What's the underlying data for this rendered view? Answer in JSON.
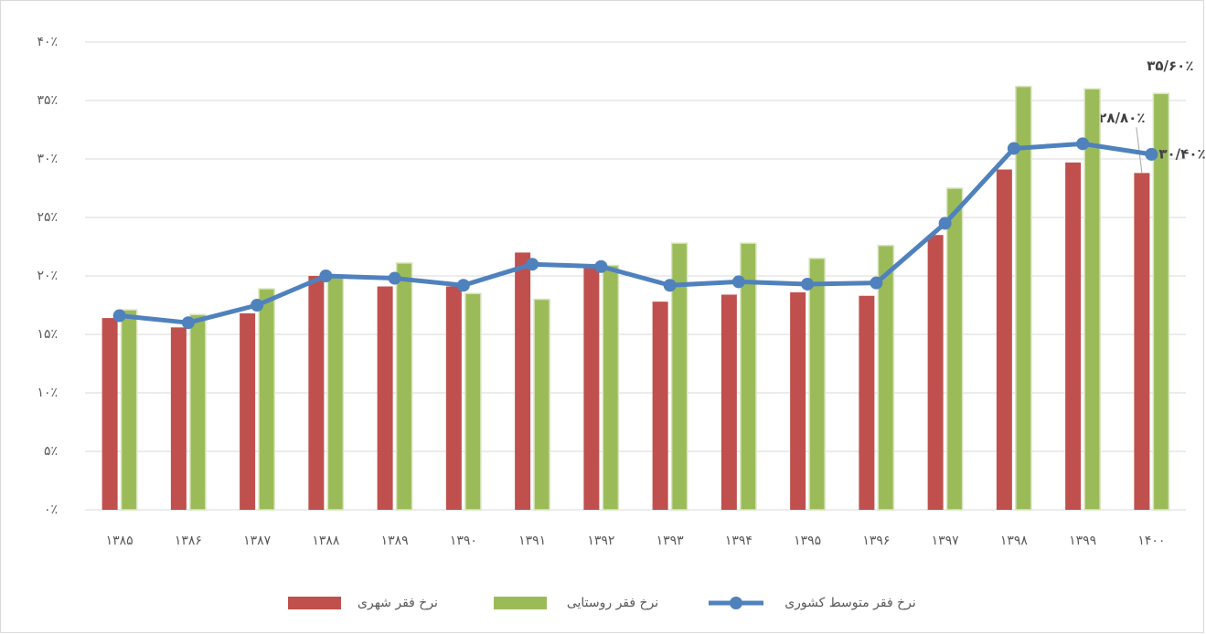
{
  "chart_data": {
    "type": "bar",
    "categories": [
      "۱۳۸۵",
      "۱۳۸۶",
      "۱۳۸۷",
      "۱۳۸۸",
      "۱۳۸۹",
      "۱۳۹۰",
      "۱۳۹۱",
      "۱۳۹۲",
      "۱۳۹۳",
      "۱۳۹۴",
      "۱۳۹۵",
      "۱۳۹۶",
      "۱۳۹۷",
      "۱۳۹۸",
      "۱۳۹۹",
      "۱۴۰۰"
    ],
    "series": [
      {
        "name": "نرخ فقر شهری",
        "type": "bar",
        "color": "#c0504d",
        "values": [
          16.4,
          15.6,
          16.8,
          20.0,
          19.1,
          19.1,
          22.0,
          20.7,
          17.8,
          18.4,
          18.6,
          18.3,
          23.5,
          29.1,
          29.7,
          28.8
        ],
        "value_labels": [
          null,
          null,
          null,
          null,
          null,
          null,
          null,
          null,
          null,
          null,
          null,
          null,
          null,
          null,
          null,
          "۲۸/۸۰٪"
        ]
      },
      {
        "name": "نرخ فقر روستایی",
        "type": "bar",
        "color": "#9bbb59",
        "values": [
          17.1,
          16.7,
          18.9,
          20.0,
          21.1,
          18.5,
          18.0,
          20.9,
          22.8,
          22.8,
          21.5,
          22.6,
          27.5,
          36.2,
          36.0,
          35.6
        ],
        "value_labels": [
          null,
          null,
          null,
          null,
          null,
          null,
          null,
          null,
          null,
          null,
          null,
          null,
          null,
          null,
          null,
          "۳۵/۶۰٪"
        ]
      },
      {
        "name": "نرخ فقر متوسط کشوری",
        "type": "line",
        "color": "#4f81bd",
        "values": [
          16.6,
          16.0,
          17.5,
          20.0,
          19.8,
          19.2,
          21.0,
          20.8,
          19.2,
          19.5,
          19.3,
          19.4,
          24.5,
          30.9,
          31.3,
          30.4
        ],
        "value_labels": [
          null,
          null,
          null,
          null,
          null,
          null,
          null,
          null,
          null,
          null,
          null,
          null,
          null,
          null,
          null,
          "۳۰/۴۰٪"
        ]
      }
    ],
    "ylim": [
      0,
      40
    ],
    "yticks": [
      {
        "value": 0,
        "label": "۰٪"
      },
      {
        "value": 5,
        "label": "۵٪"
      },
      {
        "value": 10,
        "label": "۱۰٪"
      },
      {
        "value": 15,
        "label": "۱۵٪"
      },
      {
        "value": 20,
        "label": "۲۰٪"
      },
      {
        "value": 25,
        "label": "۲۵٪"
      },
      {
        "value": 30,
        "label": "۳۰٪"
      },
      {
        "value": 35,
        "label": "۳۵٪"
      },
      {
        "value": 40,
        "label": "۴۰٪"
      }
    ],
    "grid": true,
    "legend": "bottom"
  }
}
